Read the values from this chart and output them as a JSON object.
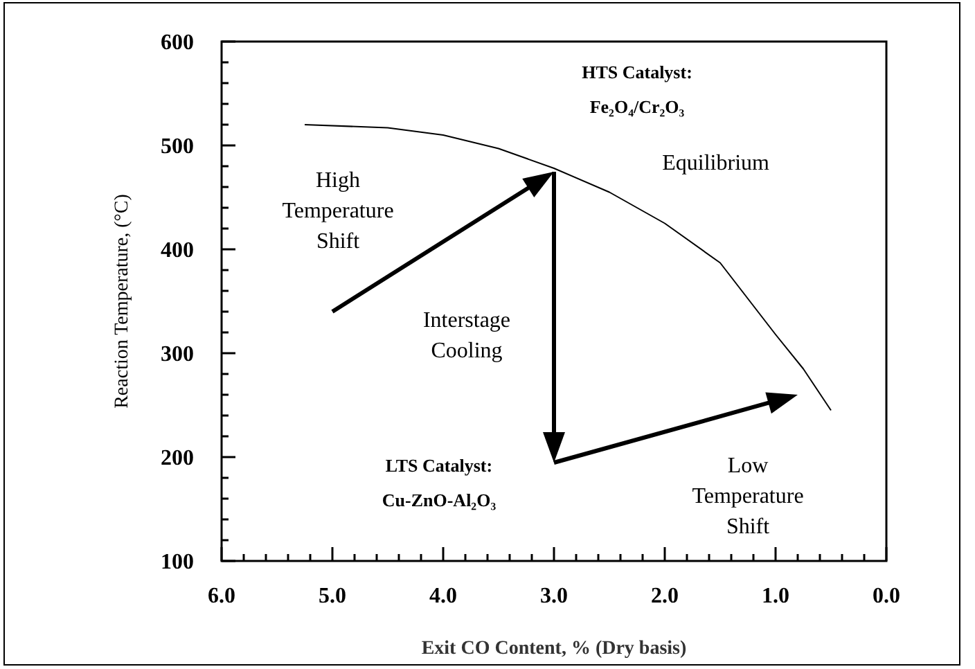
{
  "chart_data": {
    "type": "line",
    "xlabel": "Exit CO Content, % (Dry basis)",
    "ylabel": "Reaction Temperature, (°C)",
    "xlim": [
      6.0,
      0.0
    ],
    "ylim": [
      100,
      600
    ],
    "xticks": [
      {
        "value": 6,
        "label": "6.0"
      },
      {
        "value": 5.8,
        "label": null
      },
      {
        "value": 5.6,
        "label": null
      },
      {
        "value": 5.4,
        "label": null
      },
      {
        "value": 5.2,
        "label": null
      },
      {
        "value": 5,
        "label": "5.0"
      },
      {
        "value": 4.8,
        "label": null
      },
      {
        "value": 4.6,
        "label": null
      },
      {
        "value": 4.4,
        "label": null
      },
      {
        "value": 4.2,
        "label": null
      },
      {
        "value": 4,
        "label": "4.0"
      },
      {
        "value": 3.8,
        "label": null
      },
      {
        "value": 3.6,
        "label": null
      },
      {
        "value": 3.4,
        "label": null
      },
      {
        "value": 3.2,
        "label": null
      },
      {
        "value": 3,
        "label": "3.0"
      },
      {
        "value": 2.8,
        "label": null
      },
      {
        "value": 2.6,
        "label": null
      },
      {
        "value": 2.4,
        "label": null
      },
      {
        "value": 2.2,
        "label": null
      },
      {
        "value": 2,
        "label": "2.0"
      },
      {
        "value": 1.8,
        "label": null
      },
      {
        "value": 1.6,
        "label": null
      },
      {
        "value": 1.4,
        "label": null
      },
      {
        "value": 1.2,
        "label": null
      },
      {
        "value": 1,
        "label": "1.0"
      },
      {
        "value": 0.8,
        "label": null
      },
      {
        "value": 0.6,
        "label": null
      },
      {
        "value": 0.4,
        "label": null
      },
      {
        "value": 0.2,
        "label": null
      },
      {
        "value": 0,
        "label": "0.0"
      }
    ],
    "yticks": [
      100,
      {
        "value": 120,
        "label": null
      },
      {
        "value": 140,
        "label": null
      },
      {
        "value": 160,
        "label": null
      },
      {
        "value": 180,
        "label": null
      },
      200,
      {
        "value": 220,
        "label": null
      },
      {
        "value": 240,
        "label": null
      },
      {
        "value": 260,
        "label": null
      },
      {
        "value": 280,
        "label": null
      },
      300,
      {
        "value": 320,
        "label": null
      },
      {
        "value": 340,
        "label": null
      },
      {
        "value": 360,
        "label": null
      },
      {
        "value": 380,
        "label": null
      },
      400,
      {
        "value": 420,
        "label": null
      },
      {
        "value": 440,
        "label": null
      },
      {
        "value": 460,
        "label": null
      },
      {
        "value": 480,
        "label": null
      },
      500,
      {
        "value": 520,
        "label": null
      },
      {
        "value": 540,
        "label": null
      },
      {
        "value": 560,
        "label": null
      },
      {
        "value": 580,
        "label": null
      },
      600
    ],
    "series": [
      {
        "name": "Equilibrium",
        "color": "#000000",
        "x": [
          5.25,
          4.5,
          4.0,
          3.5,
          3.0,
          2.5,
          2.0,
          1.5,
          1.0,
          0.75,
          0.5
        ],
        "values": [
          520,
          517,
          510,
          497,
          478,
          455,
          425,
          387,
          318,
          285,
          245
        ]
      }
    ],
    "annotations": [
      "HTS Catalyst:\nFe₂O₄/Cr₂O₃",
      "High\nTemperature\nShift",
      "Interstage\nCooling",
      "LTS Catalyst:\nCu-ZnO-Al₂O₃",
      "Low\nTemperature\nShift"
    ],
    "grid": false
  }
}
